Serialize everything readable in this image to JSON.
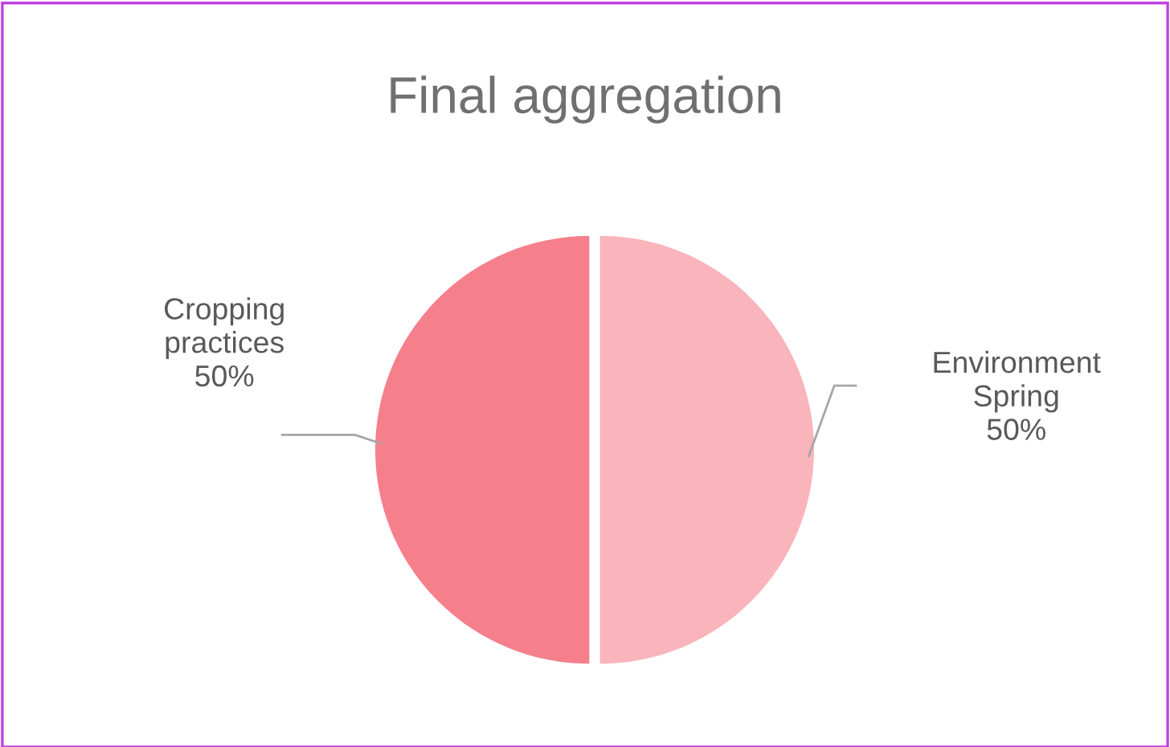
{
  "chart_data": {
    "type": "pie",
    "title": "Final aggregation",
    "categories": [
      "Environment Spring",
      "Cropping practices"
    ],
    "values": [
      50,
      50
    ],
    "colors": [
      "#f9b4bc",
      "#f67f8c"
    ],
    "value_labels": [
      "50%",
      "50%"
    ],
    "legend": false
  }
}
